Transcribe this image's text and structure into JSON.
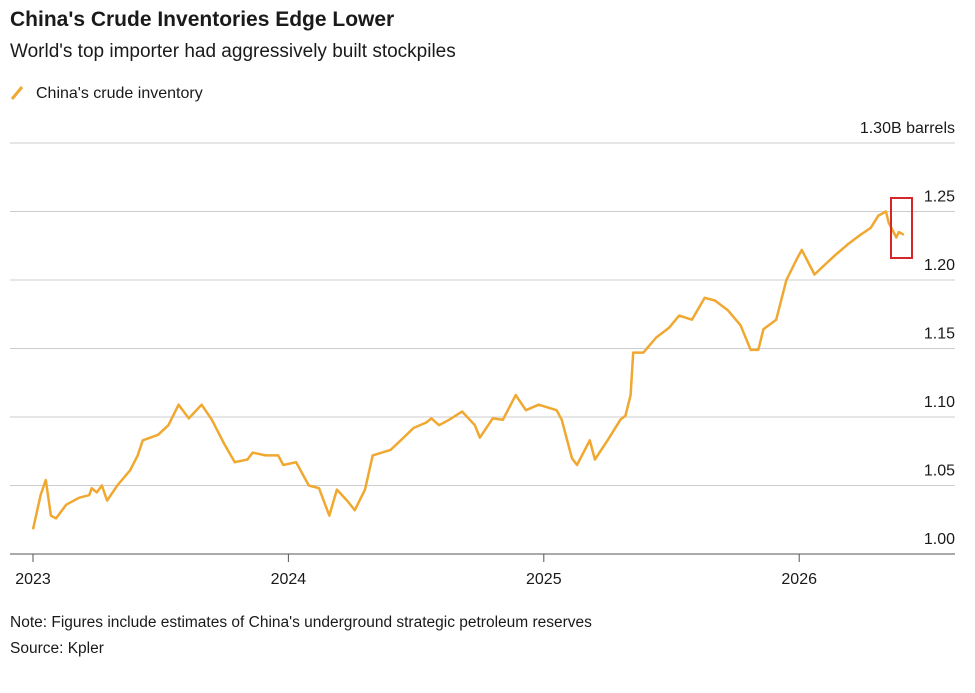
{
  "chart_data": {
    "type": "line",
    "title": "China's Crude Inventories Edge Lower",
    "subtitle": "World's top importer had aggressively built stockpiles",
    "note": "Note: Figures include estimates of China's underground strategic petroleum reserves",
    "source": "Source: Kpler",
    "x": [
      2023.0,
      2023.03,
      2023.05,
      2023.07,
      2023.09,
      2023.13,
      2023.18,
      2023.22,
      2023.23,
      2023.25,
      2023.27,
      2023.29,
      2023.33,
      2023.38,
      2023.41,
      2023.43,
      2023.49,
      2023.53,
      2023.57,
      2023.61,
      2023.66,
      2023.7,
      2023.75,
      2023.79,
      2023.84,
      2023.86,
      2023.91,
      2023.96,
      2023.98,
      2024.03,
      2024.08,
      2024.12,
      2024.16,
      2024.19,
      2024.23,
      2024.26,
      2024.3,
      2024.33,
      2024.4,
      2024.44,
      2024.49,
      2024.54,
      2024.56,
      2024.59,
      2024.63,
      2024.68,
      2024.73,
      2024.75,
      2024.8,
      2024.84,
      2024.89,
      2024.93,
      2024.98,
      2025.05,
      2025.07,
      2025.11,
      2025.13,
      2025.18,
      2025.2,
      2025.25,
      2025.3,
      2025.32,
      2025.34,
      2025.35,
      2025.39,
      2025.44,
      2025.49,
      2025.53,
      2025.58,
      2025.63,
      2025.67,
      2025.72,
      2025.77,
      2025.81,
      2025.84,
      2025.86,
      2025.91,
      2025.95,
      2025.99,
      2026.01,
      2026.06,
      2026.1,
      2026.14,
      2026.19,
      2026.24,
      2026.28,
      2026.31,
      2026.34,
      2026.35,
      2026.38,
      2026.39,
      2026.41
    ],
    "series": [
      {
        "name": "China's crude inventory",
        "color": "#f0a830",
        "values": [
          1.018,
          1.043,
          1.054,
          1.028,
          1.026,
          1.036,
          1.041,
          1.043,
          1.048,
          1.045,
          1.05,
          1.039,
          1.05,
          1.061,
          1.072,
          1.083,
          1.087,
          1.094,
          1.109,
          1.099,
          1.109,
          1.098,
          1.08,
          1.067,
          1.069,
          1.074,
          1.072,
          1.072,
          1.065,
          1.067,
          1.05,
          1.048,
          1.028,
          1.047,
          1.039,
          1.032,
          1.047,
          1.072,
          1.076,
          1.083,
          1.092,
          1.096,
          1.099,
          1.094,
          1.098,
          1.104,
          1.094,
          1.085,
          1.099,
          1.098,
          1.116,
          1.105,
          1.109,
          1.105,
          1.098,
          1.07,
          1.065,
          1.083,
          1.069,
          1.083,
          1.098,
          1.101,
          1.116,
          1.147,
          1.147,
          1.158,
          1.165,
          1.174,
          1.171,
          1.187,
          1.185,
          1.178,
          1.167,
          1.149,
          1.149,
          1.164,
          1.171,
          1.2,
          1.215,
          1.222,
          1.204,
          1.211,
          1.218,
          1.226,
          1.233,
          1.238,
          1.247,
          1.25,
          1.242,
          1.231,
          1.235,
          1.233
        ]
      }
    ],
    "xlim": [
      2022.91,
      2026.61
    ],
    "xticks": [
      2023,
      2024,
      2025,
      2026
    ],
    "ylim": [
      1.0,
      1.3
    ],
    "yticks": [
      {
        "value": 1.0,
        "label": "1.00"
      },
      1.05,
      {
        "value": 1.1,
        "label": "1.10"
      },
      1.15,
      {
        "value": 1.2,
        "label": "1.20"
      },
      1.25,
      {
        "value": 1.3,
        "label": "1.30B barrels"
      }
    ],
    "grid": true
  }
}
